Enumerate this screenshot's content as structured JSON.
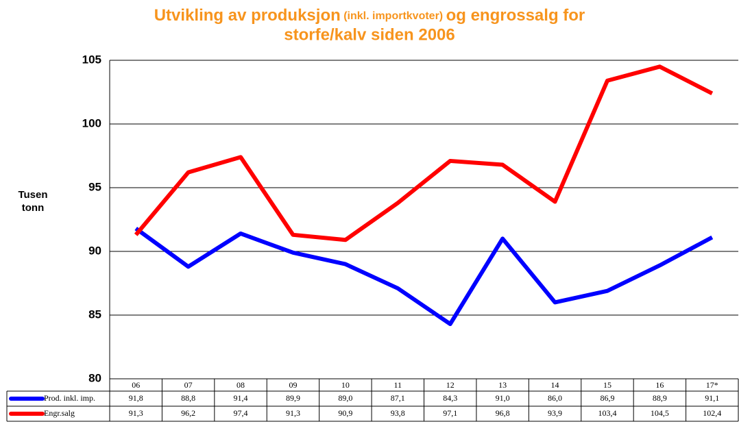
{
  "chart_data": {
    "type": "line",
    "title": [
      "Utvikling av produksjon",
      "(inkl. importkvoter)",
      "og engrossalg for",
      "storfe/kalv siden 2006"
    ],
    "y_label": [
      "Tusen",
      "tonn"
    ],
    "categories": [
      "06",
      "07",
      "08",
      "09",
      "10",
      "11",
      "12",
      "13",
      "14",
      "15",
      "16",
      "17*"
    ],
    "series": [
      {
        "name": "Prod. inkl. imp.",
        "color": "#0000ff",
        "values": [
          91.8,
          88.8,
          91.4,
          89.9,
          89.0,
          87.1,
          84.3,
          91.0,
          86.0,
          86.9,
          88.9,
          91.1
        ],
        "value_labels": [
          "91,8",
          "88,8",
          "91,4",
          "89,9",
          "89,0",
          "87,1",
          "84,3",
          "91,0",
          "86,0",
          "86,9",
          "88,9",
          "91,1"
        ]
      },
      {
        "name": "Engr.salg",
        "color": "#ff0000",
        "values": [
          91.3,
          96.2,
          97.4,
          91.3,
          90.9,
          93.8,
          97.1,
          96.8,
          93.9,
          103.4,
          104.5,
          102.4
        ],
        "value_labels": [
          "91,3",
          "96,2",
          "97,4",
          "91,3",
          "90,9",
          "93,8",
          "97,1",
          "96,8",
          "93,9",
          "103,4",
          "104,5",
          "102,4"
        ]
      }
    ],
    "ylim": [
      80,
      105
    ],
    "yticks": [
      80,
      85,
      90,
      95,
      100,
      105
    ],
    "grid": true
  }
}
